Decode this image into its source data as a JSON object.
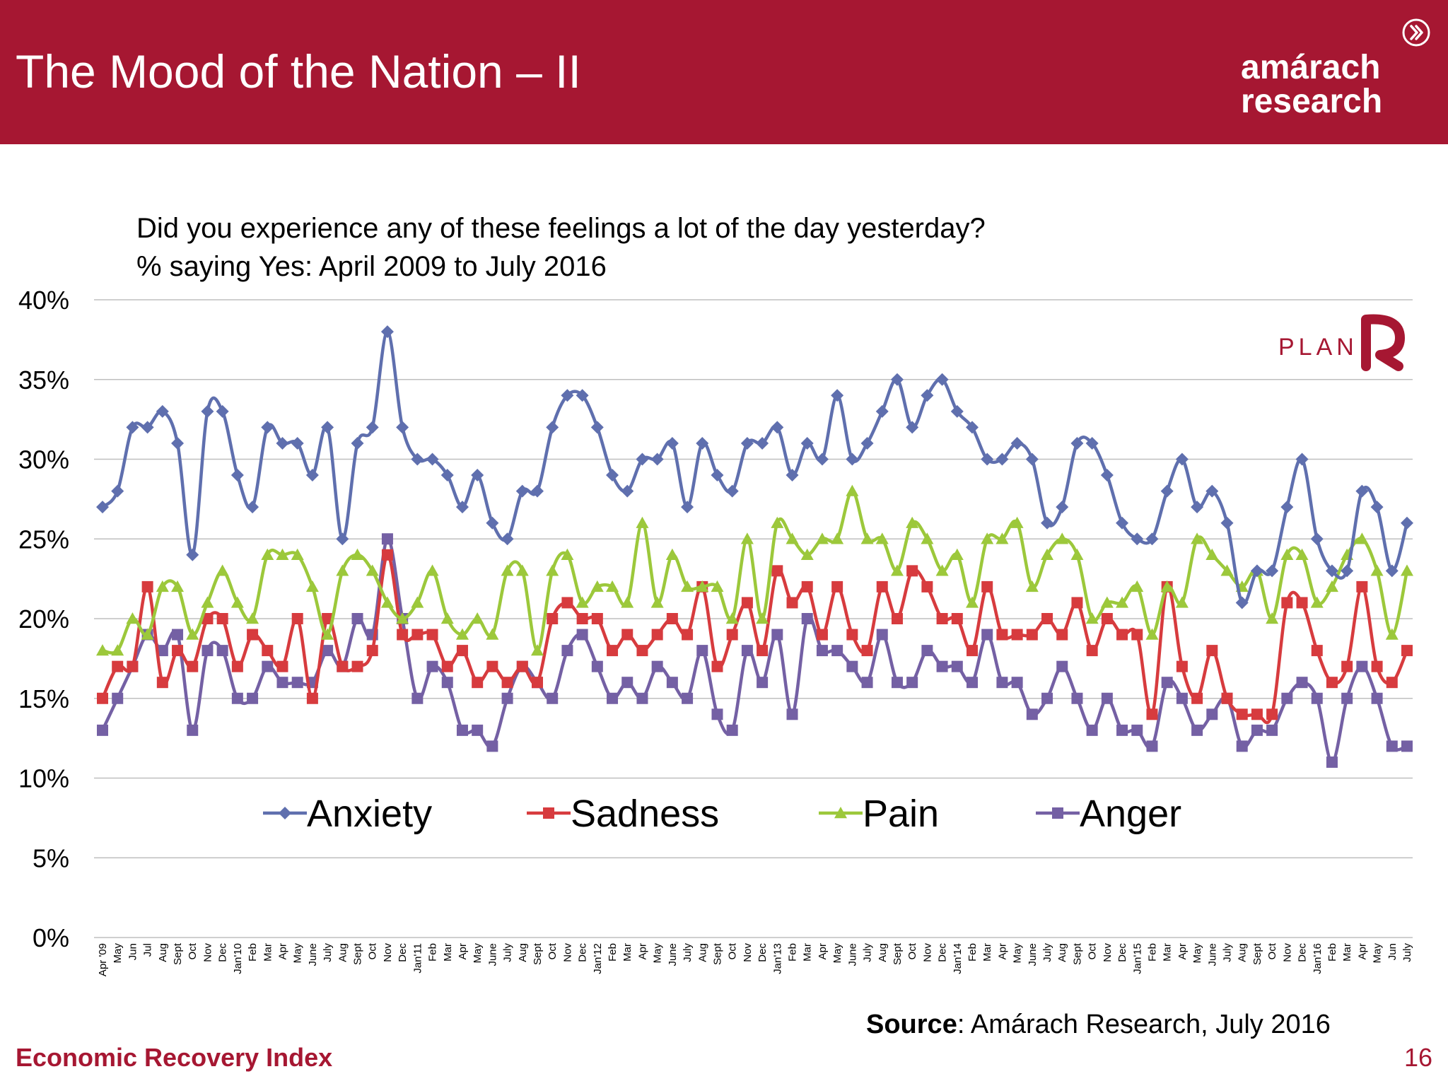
{
  "slide": {
    "title": "The Mood of the Nation – II",
    "logo_line1": "amárach",
    "logo_line2": "research",
    "subtitle_line1": "Did you experience any of these feelings a lot of the day yesterday?",
    "subtitle_line2": "% saying Yes: April 2009 to July 2016",
    "source_label": "Source",
    "source_text": ": Amárach Research, July 2016",
    "footer_left": "Economic Recovery Index",
    "page_number": "16",
    "plan_logo_text": "PLAN",
    "colors": {
      "brand": "#A61732",
      "anxiety": "#5F6FAE",
      "sadness": "#D73B3E",
      "pain": "#9CC83B",
      "anger": "#7460A4"
    }
  },
  "chart_data": {
    "type": "line",
    "ylim": [
      0,
      40
    ],
    "yticks": [
      "0%",
      "5%",
      "10%",
      "15%",
      "20%",
      "25%",
      "30%",
      "35%",
      "40%"
    ],
    "grid": true,
    "legend": "bottom-inside",
    "categories": [
      "Apr '09",
      "May",
      "Jun",
      "Jul",
      "Aug",
      "Sept",
      "Oct",
      "Nov",
      "Dec",
      "Jan'10",
      "Feb",
      "Mar",
      "Apr",
      "May",
      "June",
      "July",
      "Aug",
      "Sept",
      "Oct",
      "Nov",
      "Dec",
      "Jan'11",
      "Feb",
      "Mar",
      "Apr",
      "May",
      "June",
      "July",
      "Aug",
      "Sept",
      "Oct",
      "Nov",
      "Dec",
      "Jan'12",
      "Feb",
      "Mar",
      "Apr",
      "May",
      "June",
      "July",
      "Aug",
      "Sept",
      "Oct",
      "Nov",
      "Dec",
      "Jan'13",
      "Feb",
      "Mar",
      "Apr",
      "May",
      "June",
      "July",
      "Aug",
      "Sept",
      "Oct",
      "Nov",
      "Dec",
      "Jan'14",
      "Feb",
      "Mar",
      "Apr",
      "May",
      "June",
      "July",
      "Aug",
      "Sept",
      "Oct",
      "Nov",
      "Dec",
      "Jan'15",
      "Feb",
      "Mar",
      "Apr",
      "May",
      "June",
      "July",
      "Aug",
      "Sept",
      "Oct",
      "Nov",
      "Dec",
      "Jan'16",
      "Feb",
      "Mar",
      "Apr",
      "May",
      "Jun",
      "July"
    ],
    "series": [
      {
        "name": "Anxiety",
        "marker": "diamond",
        "values": [
          27,
          28,
          32,
          32,
          33,
          31,
          24,
          33,
          33,
          29,
          27,
          32,
          31,
          31,
          29,
          32,
          25,
          31,
          32,
          38,
          32,
          30,
          30,
          29,
          27,
          29,
          26,
          25,
          28,
          28,
          32,
          34,
          34,
          32,
          29,
          28,
          30,
          30,
          31,
          27,
          31,
          29,
          28,
          31,
          31,
          32,
          29,
          31,
          30,
          34,
          30,
          31,
          33,
          35,
          32,
          34,
          35,
          33,
          32,
          30,
          30,
          31,
          30,
          26,
          27,
          31,
          31,
          29,
          26,
          25,
          25,
          28,
          30,
          27,
          28,
          26,
          21,
          23,
          23,
          27,
          30,
          25,
          23,
          23,
          28,
          27,
          23,
          26
        ]
      },
      {
        "name": "Sadness",
        "marker": "square",
        "values": [
          15,
          17,
          17,
          22,
          16,
          18,
          17,
          20,
          20,
          17,
          19,
          18,
          17,
          20,
          15,
          20,
          17,
          17,
          18,
          24,
          19,
          19,
          19,
          17,
          18,
          16,
          17,
          16,
          17,
          16,
          20,
          21,
          20,
          20,
          18,
          19,
          18,
          19,
          20,
          19,
          22,
          17,
          19,
          21,
          18,
          23,
          21,
          22,
          19,
          22,
          19,
          18,
          22,
          20,
          23,
          22,
          20,
          20,
          18,
          22,
          19,
          19,
          19,
          20,
          19,
          21,
          18,
          20,
          19,
          19,
          14,
          22,
          17,
          15,
          18,
          15,
          14,
          14,
          14,
          21,
          21,
          18,
          16,
          17,
          22,
          17,
          16,
          18
        ]
      },
      {
        "name": "Pain",
        "marker": "triangle",
        "values": [
          18,
          18,
          20,
          19,
          22,
          22,
          19,
          21,
          23,
          21,
          20,
          24,
          24,
          24,
          22,
          19,
          23,
          24,
          23,
          21,
          20,
          21,
          23,
          20,
          19,
          20,
          19,
          23,
          23,
          18,
          23,
          24,
          21,
          22,
          22,
          21,
          26,
          21,
          24,
          22,
          22,
          22,
          20,
          25,
          20,
          26,
          25,
          24,
          25,
          25,
          28,
          25,
          25,
          23,
          26,
          25,
          23,
          24,
          21,
          25,
          25,
          26,
          22,
          24,
          25,
          24,
          20,
          21,
          21,
          22,
          19,
          22,
          21,
          25,
          24,
          23,
          22,
          23,
          20,
          24,
          24,
          21,
          22,
          24,
          25,
          23,
          19,
          23
        ]
      },
      {
        "name": "Anger",
        "marker": "square",
        "values": [
          13,
          15,
          17,
          19,
          18,
          19,
          13,
          18,
          18,
          15,
          15,
          17,
          16,
          16,
          16,
          18,
          17,
          20,
          19,
          25,
          20,
          15,
          17,
          16,
          13,
          13,
          12,
          15,
          17,
          16,
          15,
          18,
          19,
          17,
          15,
          16,
          15,
          17,
          16,
          15,
          18,
          14,
          13,
          18,
          16,
          19,
          14,
          20,
          18,
          18,
          17,
          16,
          19,
          16,
          16,
          18,
          17,
          17,
          16,
          19,
          16,
          16,
          14,
          15,
          17,
          15,
          13,
          15,
          13,
          13,
          12,
          16,
          15,
          13,
          14,
          15,
          12,
          13,
          13,
          15,
          16,
          15,
          11,
          15,
          17,
          15,
          12,
          12
        ]
      }
    ]
  }
}
